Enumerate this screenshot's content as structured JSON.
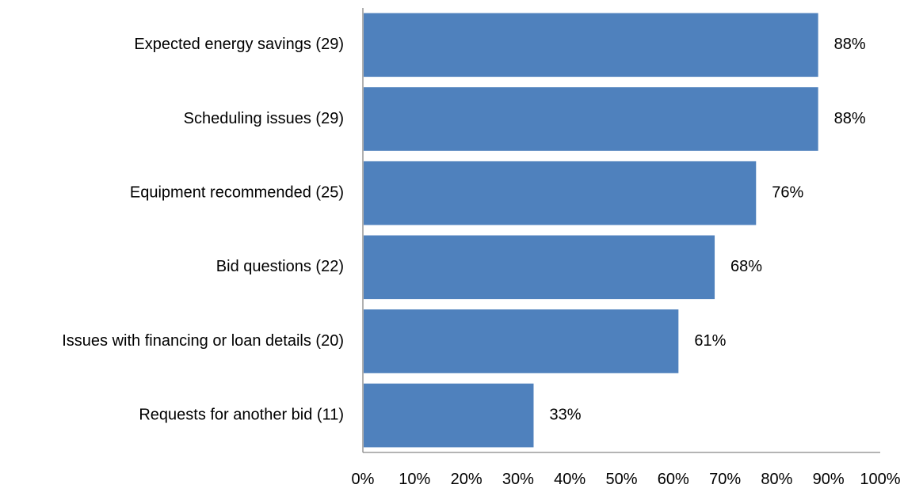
{
  "chart_data": {
    "type": "bar",
    "orientation": "horizontal",
    "categories": [
      "Expected energy savings (29)",
      "Scheduling issues (29)",
      "Equipment recommended (25)",
      "Bid questions (22)",
      "Issues with financing or loan details (20)",
      "Requests for another bid (11)"
    ],
    "values": [
      88,
      88,
      76,
      68,
      61,
      33
    ],
    "data_labels": [
      "88%",
      "88%",
      "76%",
      "68%",
      "61%",
      "33%"
    ],
    "xlim": [
      0,
      100
    ],
    "xticks": [
      "0%",
      "10%",
      "20%",
      "30%",
      "40%",
      "50%",
      "60%",
      "70%",
      "80%",
      "90%",
      "100%"
    ],
    "grid": false,
    "legend": "none",
    "bar_color": "#4F81BD"
  }
}
